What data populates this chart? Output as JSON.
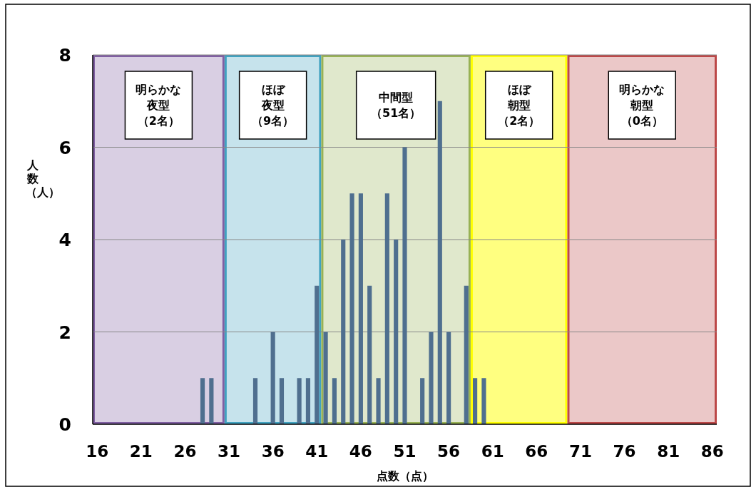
{
  "chart_data": {
    "type": "bar",
    "xlabel": "点数（点）",
    "ylabel": "人数（人）",
    "x": [
      28,
      29,
      34,
      36,
      37,
      39,
      40,
      41,
      42,
      43,
      44,
      45,
      46,
      47,
      48,
      49,
      50,
      51,
      53,
      54,
      55,
      56,
      58,
      59,
      60
    ],
    "values": [
      1,
      1,
      1,
      2,
      1,
      1,
      1,
      3,
      2,
      1,
      4,
      5,
      5,
      3,
      1,
      5,
      4,
      6,
      1,
      2,
      7,
      2,
      3,
      1,
      1
    ],
    "color": "#4f6f8f",
    "xlim": [
      15.5,
      86.5
    ],
    "xticks": [
      16,
      21,
      26,
      31,
      36,
      41,
      46,
      51,
      56,
      61,
      66,
      71,
      76,
      81,
      86
    ],
    "ylim": [
      0,
      8
    ],
    "yticks": [
      0,
      2,
      4,
      6,
      8
    ],
    "grid": "y",
    "bands": [
      {
        "axis": "x",
        "from": 15.5,
        "to": 30.5,
        "label": "明らかな夜型（2名）",
        "color": "#d9cfe3"
      },
      {
        "axis": "x",
        "from": 30.5,
        "to": 41.5,
        "label": "ほぼ夜型（9名）",
        "color": "#c6e3ec"
      },
      {
        "axis": "x",
        "from": 41.5,
        "to": 58.5,
        "label": "中間型（51名）",
        "color": "#e0e8cc"
      },
      {
        "axis": "x",
        "from": 58.5,
        "to": 69.5,
        "label": "ほぼ朝型（2名）",
        "color": "#ffff80"
      },
      {
        "axis": "x",
        "from": 69.5,
        "to": 86.5,
        "label": "明らかな朝型（0名）",
        "color": "#ebc8c8"
      }
    ]
  }
}
